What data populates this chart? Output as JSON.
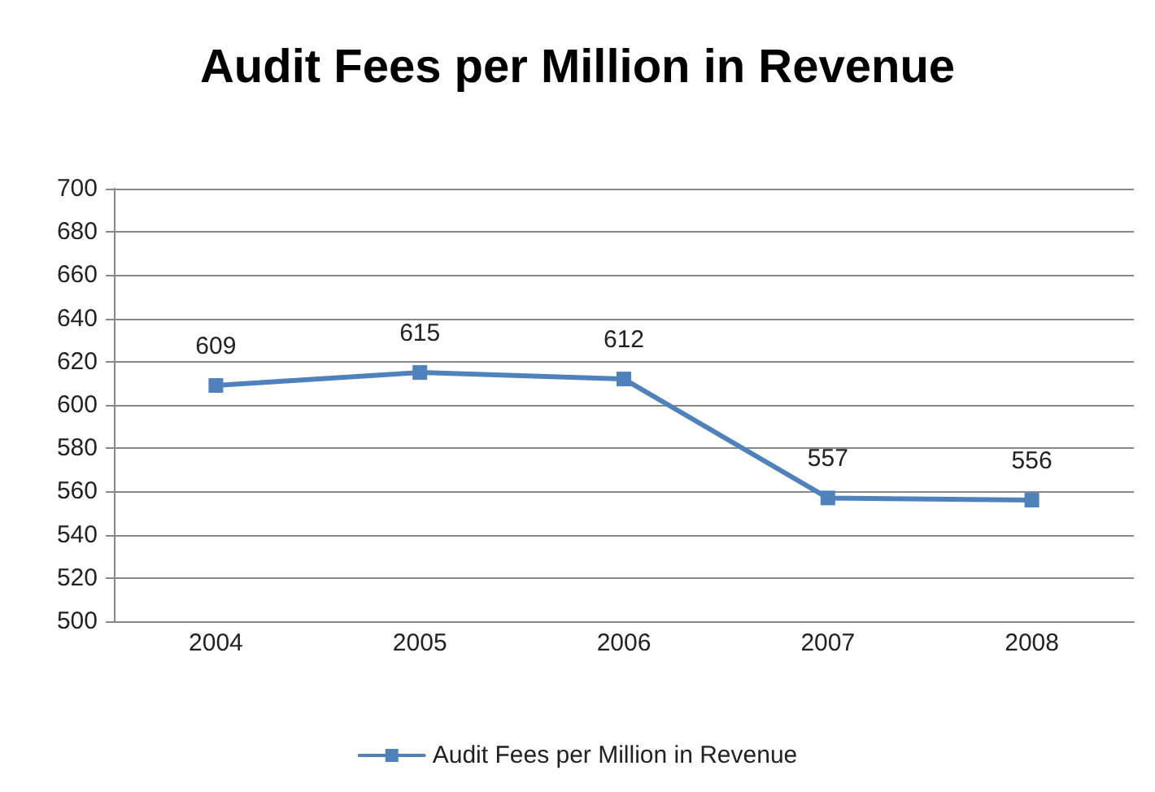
{
  "chart_data": {
    "type": "line",
    "title": "Audit Fees per Million in Revenue",
    "categories": [
      "2004",
      "2005",
      "2006",
      "2007",
      "2008"
    ],
    "series": [
      {
        "name": "Audit Fees per Million in Revenue",
        "color": "#4f81bd",
        "values": [
          609,
          615,
          612,
          557,
          556
        ]
      }
    ],
    "ylim": [
      500,
      700
    ],
    "yticks": [
      500,
      520,
      540,
      560,
      580,
      600,
      620,
      640,
      660,
      680,
      700
    ],
    "grid": "y",
    "legend": "bottom",
    "marker": "square",
    "data_labels": true
  }
}
